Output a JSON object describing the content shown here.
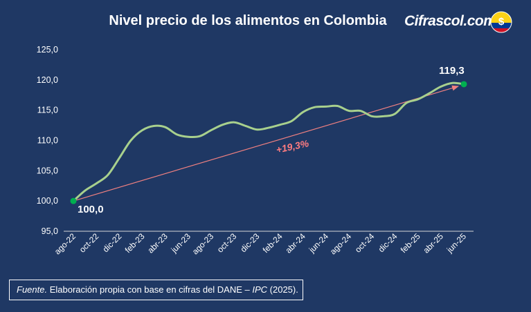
{
  "title": "Nivel precio de los alimentos en Colombia",
  "brand": "Cifrascol.com",
  "logo_symbol": "$",
  "footer": {
    "source_label": "Fuente.",
    "text_before": " Elaboración propia con base en cifras del DANE – ",
    "ipc": "IPC",
    "text_after": " (2025)."
  },
  "colors": {
    "background": "#1f3864",
    "line": "#a8d08d",
    "trend": "#f08080",
    "endpoints": "#00b050",
    "growth_text": "#ff7c80"
  },
  "chart_data": {
    "type": "line",
    "title": "Nivel precio de los alimentos en Colombia",
    "ylim": [
      95,
      125
    ],
    "yticks": [
      "95,0",
      "100,0",
      "105,0",
      "110,0",
      "115,0",
      "120,0",
      "125,0"
    ],
    "ytick_values": [
      95,
      100,
      105,
      110,
      115,
      120,
      125
    ],
    "x_tick_labels": [
      "ago-22",
      "oct-22",
      "dic-22",
      "feb-23",
      "abr-23",
      "jun-23",
      "ago-23",
      "oct-23",
      "dic-23",
      "feb-24",
      "abr-24",
      "jun-24",
      "ago-24",
      "oct-24",
      "dic-24",
      "feb-25",
      "abr-25",
      "jun-25"
    ],
    "x": [
      "ago-22",
      "sep-22",
      "oct-22",
      "nov-22",
      "dic-22",
      "ene-23",
      "feb-23",
      "mar-23",
      "abr-23",
      "may-23",
      "jun-23",
      "jul-23",
      "ago-23",
      "sep-23",
      "oct-23",
      "nov-23",
      "dic-23",
      "ene-24",
      "feb-24",
      "mar-24",
      "abr-24",
      "may-24",
      "jun-24",
      "jul-24",
      "ago-24",
      "sep-24",
      "oct-24",
      "nov-24",
      "dic-24",
      "ene-25",
      "feb-25",
      "mar-25",
      "abr-25",
      "may-25",
      "jun-25"
    ],
    "series": [
      {
        "values": [
          100.0,
          101.7,
          102.9,
          104.3,
          107.1,
          110.0,
          111.7,
          112.4,
          112.2,
          111.0,
          110.6,
          110.7,
          111.7,
          112.6,
          113.0,
          112.4,
          111.8,
          112.1,
          112.6,
          113.2,
          114.7,
          115.5,
          115.6,
          115.7,
          114.9,
          114.9,
          114.0,
          114.0,
          114.4,
          116.2,
          116.8,
          117.8,
          118.9,
          119.5,
          119.3
        ]
      }
    ],
    "annotations": {
      "start_label": "100,0",
      "end_label": "119,3",
      "growth_label": "+19,3%"
    },
    "grid": false,
    "legend": "none"
  }
}
